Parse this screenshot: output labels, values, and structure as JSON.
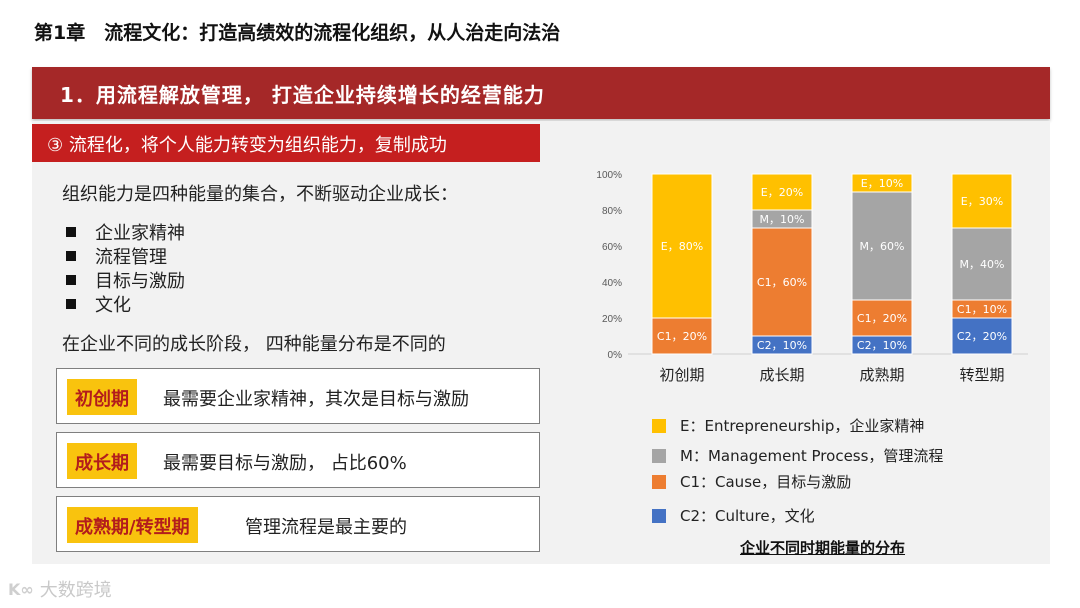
{
  "chapter_title": "第1章　流程文化：打造高绩效的流程化组织，从人治走向法治",
  "main_banner": "1．用流程解放管理， 打造企业持续增长的经营能力",
  "sub_banner": "③ 流程化，将个人能力转变为组织能力，复制成功",
  "intro": "组织能力是四种能量的集合，不断驱动企业成长：",
  "bullets": [
    "企业家精神",
    "流程管理",
    "目标与激励",
    "文化"
  ],
  "stage_note": "在企业不同的成长阶段， 四种能量分布是不同的",
  "stages": [
    {
      "tag": "初创期",
      "desc": "最需要企业家精神，其次是目标与激励"
    },
    {
      "tag": "成长期",
      "desc": "最需要目标与激励， 占比60%"
    },
    {
      "tag": "成熟期/转型期",
      "desc": "管理流程是最主要的"
    }
  ],
  "legend": [
    {
      "label": "E：Entrepreneurship，企业家精神",
      "color": "#ffc000"
    },
    {
      "label": "M：Management Process，管理流程",
      "color": "#a5a5a5"
    },
    {
      "label": "C1：Cause，目标与激励",
      "color": "#ed7d31"
    },
    {
      "label": "C2：Culture，文化",
      "color": "#4472c4"
    }
  ],
  "chart_caption": "企业不同时期能量的分布",
  "watermark": "大数跨境",
  "colors": {
    "banner": "#a52828",
    "sub_banner": "#c51f1f",
    "stage_tag": "#f9c30e",
    "stage_tag_text": "#b31c1c"
  },
  "chart_data": {
    "type": "bar",
    "stacked": true,
    "categories": [
      "初创期",
      "成长期",
      "成熟期",
      "转型期"
    ],
    "y_ticks": [
      "0%",
      "20%",
      "40%",
      "60%",
      "80%",
      "100%"
    ],
    "ylim": [
      0,
      100
    ],
    "series": [
      {
        "key": "C2",
        "color": "#4472c4",
        "values": [
          0,
          10,
          10,
          20
        ],
        "labels": [
          "",
          "C2，10%",
          "C2，10%",
          "C2，20%"
        ]
      },
      {
        "key": "C1",
        "color": "#ed7d31",
        "values": [
          20,
          60,
          20,
          10
        ],
        "labels": [
          "C1，20%",
          "C1，60%",
          "C1，20%",
          "C1，10%"
        ]
      },
      {
        "key": "M",
        "color": "#a5a5a5",
        "values": [
          0,
          10,
          60,
          40
        ],
        "labels": [
          "",
          "M，10%",
          "M，60%",
          "M，40%"
        ]
      },
      {
        "key": "E",
        "color": "#ffc000",
        "values": [
          80,
          20,
          10,
          30
        ],
        "labels": [
          "E，80%",
          "E，20%",
          "E，10%",
          "E，30%"
        ]
      }
    ]
  }
}
